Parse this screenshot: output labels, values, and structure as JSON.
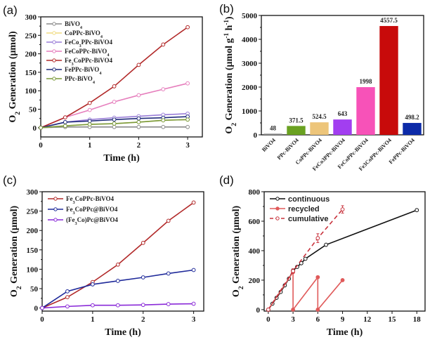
{
  "chart_data": [
    {
      "id": "a",
      "panel_label": "(a)",
      "type": "line",
      "title": "",
      "xlabel": "Time (h)",
      "ylabel": "O2 Generation (μmol)",
      "ylabel_parts": {
        "pre": "O",
        "sub": "2",
        "post": " Generation (μmol)"
      },
      "xlim": [
        0,
        3.3
      ],
      "ylim": [
        -25,
        300
      ],
      "xticks": [
        0,
        1,
        2,
        3
      ],
      "yticks": [
        0,
        50,
        100,
        150,
        200,
        250,
        300
      ],
      "legend_position": "top-left",
      "x": [
        0,
        0.5,
        1,
        1.5,
        2,
        2.5,
        3
      ],
      "series": [
        {
          "name": "BiVO4",
          "label_parts": {
            "pre": "BiVO",
            "sub": "4",
            "post": ""
          },
          "color": "#8a8a8a",
          "values": [
            0,
            2,
            2,
            2,
            2,
            2,
            2
          ]
        },
        {
          "name": "CoPPc-BiVO4",
          "label_parts": {
            "pre": "CoPPc-BiVO",
            "sub": "4",
            "post": ""
          },
          "color": "#f0dc82",
          "values": [
            0,
            5,
            9,
            11,
            15,
            20,
            22
          ]
        },
        {
          "name": "FeCo3PPc-BiVO4",
          "label_parts": {
            "pre": "FeCo",
            "sub": "3",
            "post": "PPc-BiVO4"
          },
          "color": "#9a7ed8",
          "values": [
            0,
            15,
            22,
            27,
            31,
            35,
            38
          ]
        },
        {
          "name": "FeCoPPc-BiVO4",
          "label_parts": {
            "pre": "FeCoPPc-BiVO",
            "sub": "4",
            "post": ""
          },
          "color": "#e67fbd",
          "values": [
            0,
            28,
            48,
            70,
            88,
            104,
            120
          ]
        },
        {
          "name": "Fe3CoPPc-BiVO4",
          "label_parts": {
            "pre": "Fe",
            "sub": "3",
            "post": "CoPPc-BiVO4"
          },
          "color": "#b22a2a",
          "values": [
            0,
            28,
            67,
            112,
            170,
            225,
            272
          ]
        },
        {
          "name": "FePPc-BiVO4",
          "label_parts": {
            "pre": "FePPc-BiVO",
            "sub": "4",
            "post": ""
          },
          "color": "#1f2a7a",
          "values": [
            0,
            15,
            18,
            22,
            25,
            27,
            30
          ]
        },
        {
          "name": "PPc-BiVO4",
          "label_parts": {
            "pre": "PPc-BiVO",
            "sub": "4",
            "post": ""
          },
          "color": "#7a9a3a",
          "values": [
            0,
            5,
            9,
            11,
            15,
            20,
            22
          ]
        }
      ]
    },
    {
      "id": "b",
      "panel_label": "(b)",
      "type": "bar",
      "title": "",
      "xlabel": "",
      "ylabel": "O2 Generation (μmol g-1 h-1)",
      "ylabel_parts": {
        "pre": "O",
        "sub": "2",
        "post": " Generation (μmol g",
        "sup1": "-1",
        "mid": " h",
        "sup2": "-1",
        "end": ")"
      },
      "ylim": [
        0,
        5000
      ],
      "yticks": [
        0,
        1000,
        2000,
        3000,
        4000,
        5000
      ],
      "categories": [
        "BiVO4",
        "PPc-BiVO4",
        "CoPPc-BiVO4",
        "FeCo3PPc-BiVO4",
        "FeCoPPc-BiVO4",
        "Fe3CoPPc-BiVO4",
        "FePPc-BiVO4"
      ],
      "values": [
        48,
        371.5,
        524.5,
        643,
        1998,
        4557.5,
        498.2
      ],
      "data_labels": [
        "48",
        "371.5",
        "524.5",
        "643",
        "1998",
        "4557.5",
        "498.2"
      ],
      "colors": [
        "#8a8a8a",
        "#6aa121",
        "#edc57a",
        "#a23ef0",
        "#f752b8",
        "#c80a0a",
        "#0c2aa8"
      ]
    },
    {
      "id": "c",
      "panel_label": "(c)",
      "type": "line",
      "title": "",
      "xlabel": "Time (h)",
      "ylabel": "O2 Generation (μmol)",
      "ylabel_parts": {
        "pre": "O",
        "sub": "2",
        "post": " Generation (μmol)"
      },
      "xlim": [
        0,
        3.2
      ],
      "ylim": [
        -8,
        300
      ],
      "xticks": [
        0,
        1,
        2,
        3
      ],
      "yticks": [
        0,
        50,
        100,
        150,
        200,
        250,
        300
      ],
      "legend_position": "top-left",
      "x": [
        0,
        0.5,
        1,
        1.5,
        2,
        2.5,
        3
      ],
      "series": [
        {
          "name": "Fe3CoPPc-BiVO4",
          "label_parts": {
            "pre": "Fe",
            "sub": "3",
            "post": "CoPPc-BiVO4"
          },
          "color": "#b22a2a",
          "values": [
            0,
            28,
            67,
            112,
            168,
            225,
            272
          ]
        },
        {
          "name": "Fe3CoPPc@BiVO4",
          "label_parts": {
            "pre": "Fe",
            "sub": "3",
            "post": "CoPPc@BiVO4"
          },
          "color": "#1f2a9a",
          "values": [
            0,
            43,
            61,
            70,
            79,
            89,
            98
          ]
        },
        {
          "name": "(Fe3Co)Pc@BiVO4",
          "label_parts": {
            "pre": "(Fe",
            "sub": "3",
            "post": "Co)Pc@BiVO4"
          },
          "color": "#8a2ad8",
          "values": [
            0,
            4,
            7,
            7,
            8,
            10,
            11
          ]
        }
      ]
    },
    {
      "id": "d",
      "panel_label": "(d)",
      "type": "line",
      "title": "",
      "xlabel": "Time (h)",
      "ylabel": "O2 Generation (μmol)",
      "ylabel_parts": {
        "pre": "O",
        "sub": "2",
        "post": " Generation (μmol)"
      },
      "xlim": [
        -0.5,
        19
      ],
      "ylim": [
        -10,
        800
      ],
      "xticks": [
        0,
        3,
        6,
        9,
        12,
        15,
        18
      ],
      "yticks": [
        0,
        200,
        400,
        600,
        800
      ],
      "legend_position": "top-left",
      "series": [
        {
          "name": "continuous",
          "color": "#111111",
          "style": "solid",
          "marker": "open-circle",
          "x": [
            0,
            0.5,
            1,
            1.5,
            2,
            2.5,
            3,
            3.5,
            4,
            4.5,
            7,
            18
          ],
          "values": [
            0,
            40,
            80,
            120,
            165,
            210,
            265,
            290,
            315,
            345,
            440,
            675
          ]
        },
        {
          "name": "recycled",
          "color": "#e05a5a",
          "style": "solid",
          "marker": "filled-circle",
          "x": [
            0,
            3,
            3,
            6,
            6,
            9
          ],
          "values": [
            0,
            255,
            0,
            220,
            0,
            200
          ]
        },
        {
          "name": "cumulative",
          "color": "#c8323c",
          "style": "dashed",
          "marker": "open-circle",
          "x": [
            0,
            3,
            6,
            9
          ],
          "values": [
            0,
            262,
            485,
            680
          ],
          "errors": [
            0,
            15,
            30,
            25
          ]
        }
      ]
    }
  ]
}
